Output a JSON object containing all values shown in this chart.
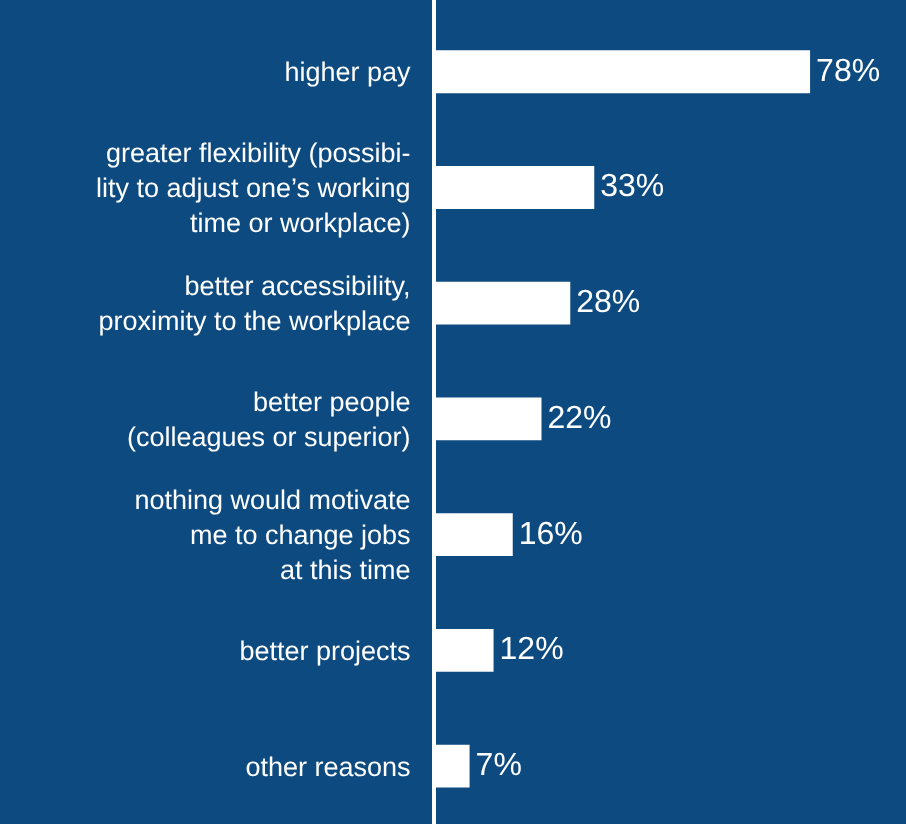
{
  "chart_data": {
    "type": "bar",
    "orientation": "horizontal",
    "categories": [
      "higher pay",
      "greater flexibility (possibi-\nlity to adjust one’s working\ntime or workplace)",
      "better accessibility,\nproximity to the workplace",
      "better people\n(colleagues or superior)",
      "nothing would motivate\nme to change jobs\nat this time",
      "better projects",
      "other reasons"
    ],
    "values": [
      78,
      33,
      28,
      22,
      16,
      12,
      7
    ],
    "value_labels": [
      "78%",
      "33%",
      "28%",
      "22%",
      "16%",
      "12%",
      "7%"
    ],
    "color": "#ffffff",
    "xlim": [
      0,
      98
    ],
    "tick_labels": "y"
  }
}
